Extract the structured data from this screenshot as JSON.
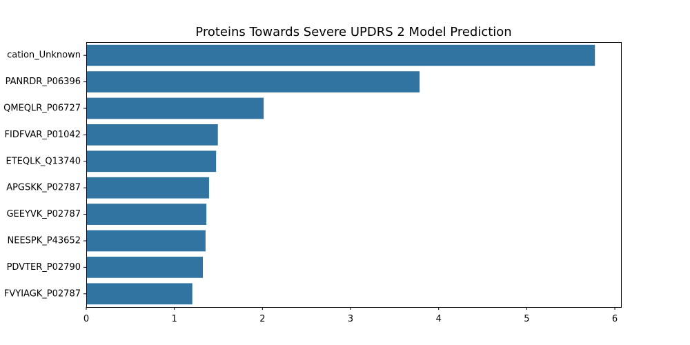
{
  "chart_data": {
    "type": "bar",
    "orientation": "horizontal",
    "title": "Proteins Towards Severe UPDRS 2 Model Prediction",
    "xlabel": "",
    "ylabel": "",
    "categories": [
      "cation_Unknown",
      "PANRDR_P06396",
      "QMEQLR_P06727",
      "FIDFVAR_P01042",
      "ETEQLK_Q13740",
      "APGSKK_P02787",
      "GEEYVK_P02787",
      "NEESPK_P43652",
      "PDVTER_P02790",
      "FVYIAGK_P02787"
    ],
    "values": [
      5.77,
      3.78,
      2.01,
      1.49,
      1.47,
      1.39,
      1.36,
      1.35,
      1.32,
      1.2
    ],
    "xlim": [
      0,
      6.07
    ],
    "xticks": [
      0,
      1,
      2,
      3,
      4,
      5,
      6
    ],
    "bar_color": "#3274a1",
    "grid": false,
    "legend": "none"
  }
}
